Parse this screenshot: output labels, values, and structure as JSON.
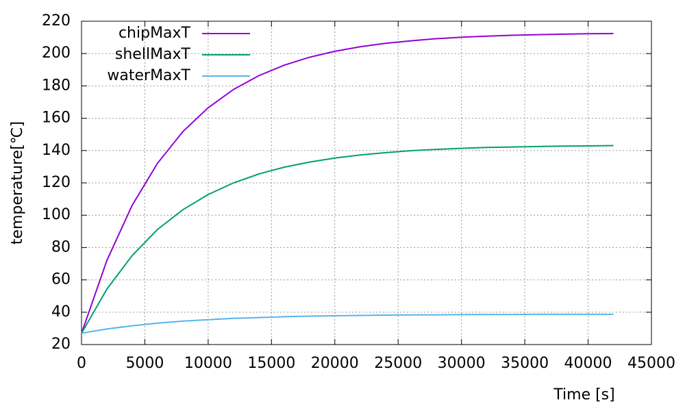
{
  "chart_data": {
    "type": "line",
    "xlabel": "Time [s]",
    "ylabel": "temperature[℃]",
    "x": [
      0,
      2000,
      4000,
      6000,
      8000,
      10000,
      12000,
      14000,
      16000,
      18000,
      20000,
      22000,
      24000,
      26000,
      28000,
      30000,
      32000,
      34000,
      36000,
      38000,
      40000,
      42000
    ],
    "series": [
      {
        "name": "chipMaxT",
        "color": "#9400d3",
        "values": [
          27,
          72.0,
          106.2,
          132.1,
          151.7,
          166.5,
          177.8,
          186.3,
          192.8,
          197.7,
          201.4,
          204.2,
          206.3,
          207.9,
          209.2,
          210.1,
          210.8,
          211.3,
          211.7,
          212.0,
          212.3,
          212.4
        ]
      },
      {
        "name": "shellMaxT",
        "color": "#009e73",
        "values": [
          27,
          54.3,
          75.1,
          91.2,
          103.4,
          112.8,
          120.0,
          125.5,
          129.7,
          132.9,
          135.4,
          137.3,
          138.7,
          139.9,
          140.7,
          141.4,
          141.9,
          142.2,
          142.5,
          142.8,
          142.9,
          143.1
        ]
      },
      {
        "name": "waterMaxT",
        "color": "#56b4e9",
        "values": [
          27,
          29.6,
          31.6,
          33.2,
          34.5,
          35.4,
          36.2,
          36.7,
          37.2,
          37.6,
          37.8,
          38.0,
          38.2,
          38.3,
          38.4,
          38.5,
          38.6,
          38.6,
          38.7,
          38.7,
          38.7,
          38.7
        ]
      }
    ],
    "xlim": [
      0,
      45000
    ],
    "xticks": [
      0,
      5000,
      10000,
      15000,
      20000,
      25000,
      30000,
      35000,
      40000,
      45000
    ],
    "ylim": [
      20,
      220
    ],
    "yticks": [
      20,
      40,
      60,
      80,
      100,
      120,
      140,
      160,
      180,
      200,
      220
    ],
    "grid": true,
    "legend": "top-left"
  }
}
